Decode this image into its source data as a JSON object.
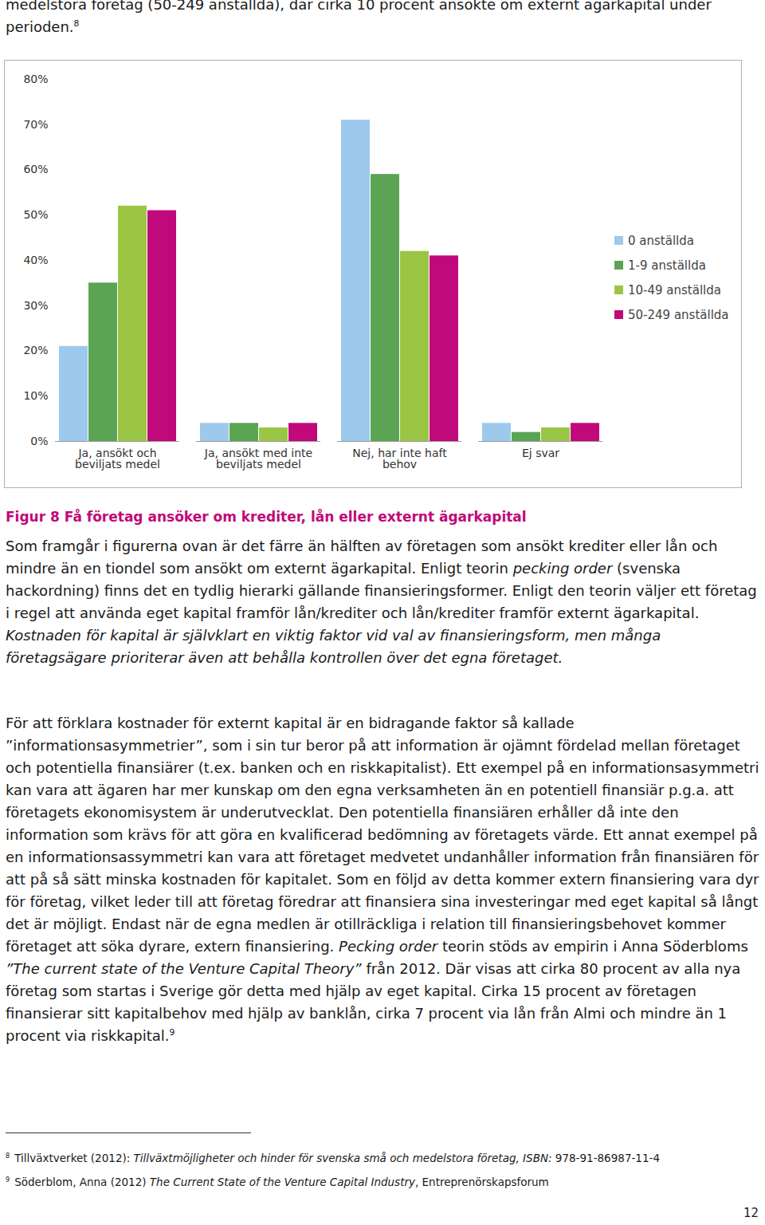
{
  "header": {
    "text": "medelstora företag (50-249 anställda), där cirka 10 procent ansökte om externt ägarkapital under perioden.",
    "footnote_ref": "8"
  },
  "chart_data": {
    "type": "bar",
    "categories": [
      "Ja, ansökt och beviljats medel",
      "Ja, ansökt med inte beviljats medel",
      "Nej, har inte haft behov",
      "Ej svar"
    ],
    "series": [
      {
        "name": "0 anställda",
        "color": "#9dc9ec",
        "values": [
          21,
          4,
          71,
          4
        ]
      },
      {
        "name": "1-9 anställda",
        "color": "#5aa454",
        "values": [
          35,
          4,
          59,
          2
        ]
      },
      {
        "name": "10-49 anställda",
        "color": "#9bc545",
        "values": [
          52,
          3,
          42,
          3
        ]
      },
      {
        "name": "50-249 anställda",
        "color": "#c0097a",
        "values": [
          51,
          4,
          41,
          4
        ]
      }
    ],
    "ylim": [
      0,
      80
    ],
    "yticks": [
      {
        "value": 0,
        "label": "0%"
      },
      {
        "value": 10,
        "label": "10%"
      },
      {
        "value": 20,
        "label": "20%"
      },
      {
        "value": 30,
        "label": "30%"
      },
      {
        "value": 40,
        "label": "40%"
      },
      {
        "value": 50,
        "label": "50%"
      },
      {
        "value": 60,
        "label": "60%"
      },
      {
        "value": 70,
        "label": "70%"
      },
      {
        "value": 80,
        "label": "80%"
      }
    ],
    "grid": false,
    "legend": "right"
  },
  "caption": "Figur 8 Få företag ansöker om krediter, lån eller externt ägarkapital",
  "paragraphs": [
    [
      {
        "text": "Som framgår i figurerna ovan är det färre än hälften av företagen som ansökt krediter eller lån och mindre än en tiondel som ansökt om externt ägarkapital. Enligt teorin "
      },
      {
        "text": "pecking order",
        "italic": true
      },
      {
        "text": " (svenska hackordning) finns det en tydlig hierarki gällande finansieringsformer. Enligt den teorin väljer ett företag i regel att använda eget kapital framför lån/krediter och lån/krediter framför externt ägarkapital. "
      },
      {
        "text": "Kostnaden för kapital är självklart en viktig faktor vid val av finansieringsform, men många företagsägare prioriterar även att behålla kontrollen över det egna företaget.",
        "italic": true
      }
    ],
    [
      {
        "text": "För att förklara kostnader för externt kapital är en bidragande faktor så kallade ”informationsasymmetrier”, som i sin tur beror på att information är ojämnt fördelad mellan företaget och potentiella finansiärer (t.ex. banken och en riskkapitalist). Ett exempel på en informationsasymmetri kan vara att ägaren har mer kunskap om den egna verksamheten än en potentiell finansiär p.g.a. att företagets ekonomisystem är underutvecklat. Den potentiella finansiären erhåller då inte den information som krävs för att göra en kvalificerad bedömning av företagets värde. Ett annat exempel på en informationsassymmetri kan vara att företaget medvetet undanhåller information från finansiären för att på så sätt minska kostnaden för kapitalet. Som en följd av detta kommer extern finansiering vara dyr för företag, vilket leder till att företag föredrar att finansiera sina investeringar med eget kapital så långt det är möjligt. Endast när de egna medlen är otillräckliga i relation till finansieringsbehovet kommer företaget att söka dyrare, extern finansiering. "
      },
      {
        "text": "Pecking order",
        "italic": true
      },
      {
        "text": " teorin stöds av empirin i Anna Söderbloms "
      },
      {
        "text": "”The current state of the Venture Capital Theory”",
        "italic": true
      },
      {
        "text": " från 2012. Där visas att cirka 80 procent av alla nya företag som startas i Sverige gör detta med hjälp av eget kapital. Cirka 15 procent av företagen finansierar sitt kapitalbehov med hjälp av banklån, cirka 7 procent via lån från Almi och mindre än 1 procent via riskkapital."
      },
      {
        "text": "9",
        "sup": true
      }
    ]
  ],
  "footnotes": [
    {
      "number": "8",
      "runs": [
        {
          "text": "Tillväxtverket (2012): "
        },
        {
          "text": "Tillväxtmöjligheter och hinder för svenska små och medelstora företag, ISBN:",
          "italic": true
        },
        {
          "text": " 978-91-86987-11-4"
        }
      ]
    },
    {
      "number": "9",
      "runs": [
        {
          "text": "Söderblom, Anna (2012) "
        },
        {
          "text": "The Current State of the Venture Capital Industry",
          "italic": true
        },
        {
          "text": ", Entreprenörskapsforum"
        }
      ]
    }
  ],
  "page_number": "12"
}
